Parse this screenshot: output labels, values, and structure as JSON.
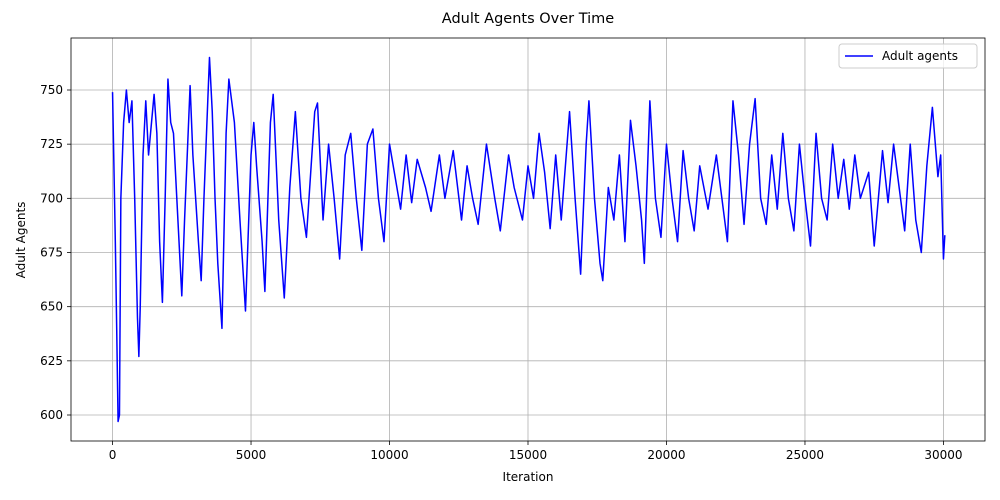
{
  "chart_data": {
    "type": "line",
    "title": "Adult Agents Over Time",
    "xlabel": "Iteration",
    "ylabel": "Adult Agents",
    "x": [
      0,
      100,
      150,
      200,
      250,
      300,
      400,
      500,
      600,
      700,
      800,
      900,
      950,
      1000,
      1100,
      1200,
      1300,
      1500,
      1600,
      1700,
      1800,
      1900,
      2000,
      2100,
      2200,
      2400,
      2500,
      2600,
      2800,
      2900,
      3000,
      3100,
      3200,
      3300,
      3500,
      3600,
      3700,
      3800,
      3950,
      4100,
      4200,
      4400,
      4600,
      4800,
      5000,
      5100,
      5200,
      5400,
      5500,
      5700,
      5800,
      6000,
      6200,
      6400,
      6600,
      6800,
      7000,
      7300,
      7400,
      7600,
      7800,
      8000,
      8200,
      8400,
      8600,
      8800,
      9000,
      9200,
      9400,
      9600,
      9800,
      10000,
      10200,
      10400,
      10600,
      10800,
      11000,
      11300,
      11500,
      11800,
      12000,
      12300,
      12600,
      12800,
      13000,
      13200,
      13500,
      13800,
      14000,
      14300,
      14500,
      14800,
      15000,
      15200,
      15400,
      15600,
      15800,
      16000,
      16200,
      16500,
      16700,
      16900,
      17100,
      17200,
      17400,
      17600,
      17700,
      17900,
      18100,
      18300,
      18500,
      18700,
      18900,
      19100,
      19200,
      19400,
      19600,
      19800,
      20000,
      20200,
      20400,
      20600,
      20800,
      21000,
      21200,
      21500,
      21800,
      22000,
      22200,
      22400,
      22600,
      22800,
      23000,
      23200,
      23400,
      23600,
      23800,
      24000,
      24200,
      24400,
      24600,
      24800,
      25000,
      25200,
      25400,
      25600,
      25800,
      26000,
      26200,
      26400,
      26600,
      26800,
      27000,
      27300,
      27500,
      27800,
      28000,
      28200,
      28400,
      28600,
      28800,
      29000,
      29200,
      29400,
      29600,
      29800,
      29900,
      30000,
      30050
    ],
    "series": [
      {
        "name": "Adult agents",
        "color": "#0000ff",
        "values": [
          749,
          680,
          640,
          597,
          600,
          700,
          735,
          750,
          735,
          745,
          700,
          645,
          627,
          650,
          720,
          745,
          720,
          748,
          730,
          680,
          652,
          700,
          755,
          735,
          730,
          680,
          655,
          690,
          752,
          720,
          700,
          680,
          662,
          700,
          765,
          740,
          700,
          670,
          640,
          730,
          755,
          735,
          690,
          648,
          720,
          735,
          715,
          680,
          657,
          735,
          748,
          690,
          654,
          705,
          740,
          700,
          682,
          740,
          744,
          690,
          725,
          700,
          672,
          720,
          730,
          700,
          676,
          725,
          732,
          700,
          680,
          725,
          710,
          695,
          720,
          698,
          718,
          705,
          694,
          720,
          700,
          722,
          690,
          715,
          700,
          688,
          725,
          700,
          685,
          720,
          705,
          690,
          715,
          700,
          730,
          712,
          686,
          720,
          690,
          740,
          700,
          665,
          725,
          745,
          700,
          670,
          662,
          705,
          690,
          720,
          680,
          736,
          715,
          690,
          670,
          745,
          700,
          682,
          725,
          700,
          680,
          722,
          700,
          685,
          715,
          695,
          720,
          700,
          680,
          745,
          720,
          688,
          725,
          746,
          700,
          688,
          720,
          695,
          730,
          700,
          685,
          725,
          700,
          678,
          730,
          700,
          690,
          725,
          700,
          718,
          695,
          720,
          700,
          712,
          678,
          722,
          698,
          725,
          705,
          685,
          725,
          690,
          675,
          715,
          742,
          710,
          720,
          672,
          683
        ]
      }
    ],
    "xlim": [
      -1500,
      31500
    ],
    "ylim": [
      588,
      774
    ],
    "xticks": [
      0,
      5000,
      10000,
      15000,
      20000,
      25000,
      30000
    ],
    "yticks": [
      600,
      625,
      650,
      675,
      700,
      725,
      750
    ],
    "grid": true,
    "legend": "upper right"
  }
}
